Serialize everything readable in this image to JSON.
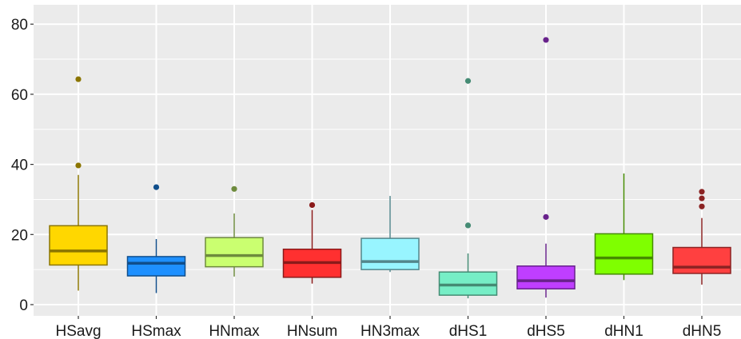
{
  "chart_data": {
    "type": "boxplot",
    "title": "",
    "xlabel": "",
    "ylabel": "",
    "ylim": [
      -4,
      84
    ],
    "y_ticks": [
      0,
      20,
      40,
      60,
      80
    ],
    "y_tick_labels": [
      "0",
      "20",
      "40",
      "60",
      "80"
    ],
    "grid": true,
    "legend": "none",
    "panel_background": "#EBEBEB",
    "grid_color": "#FFFFFF",
    "categories": [
      "HSavg",
      "HSmax",
      "HNmax",
      "HNsum",
      "HN3max",
      "dHS1",
      "dHS5",
      "dHN1",
      "dHN5"
    ],
    "boxes": [
      {
        "label": "HSavg",
        "whisker_low": 4.0,
        "q1": 11.3,
        "median": 15.3,
        "q3": 22.5,
        "whisker_high": 37.0,
        "outliers": [
          39.7,
          64.3
        ],
        "fill": "#FFD700",
        "line": "#8B7500"
      },
      {
        "label": "HSmax",
        "whisker_low": 3.3,
        "q1": 8.2,
        "median": 11.8,
        "q3": 13.7,
        "whisker_high": 18.7,
        "outliers": [
          33.5
        ],
        "fill": "#1E90FF",
        "line": "#104E8B"
      },
      {
        "label": "HNmax",
        "whisker_low": 8.0,
        "q1": 10.8,
        "median": 14.0,
        "q3": 19.1,
        "whisker_high": 26.0,
        "outliers": [
          33.0
        ],
        "fill": "#CAFF70",
        "line": "#6E8B3D"
      },
      {
        "label": "HNsum",
        "whisker_low": 6.0,
        "q1": 7.8,
        "median": 12.0,
        "q3": 15.8,
        "whisker_high": 27.0,
        "outliers": [
          28.4
        ],
        "fill": "#FF3030",
        "line": "#8B1A1A"
      },
      {
        "label": "HN3max",
        "whisker_low": 9.3,
        "q1": 10.0,
        "median": 12.3,
        "q3": 18.9,
        "whisker_high": 31.0,
        "outliers": [],
        "fill": "#98F5FF",
        "line": "#53868B"
      },
      {
        "label": "dHS1",
        "whisker_low": 1.8,
        "q1": 2.7,
        "median": 5.6,
        "q3": 9.3,
        "whisker_high": 14.6,
        "outliers": [
          22.6,
          63.8
        ],
        "fill": "#76EEC6",
        "line": "#458B74"
      },
      {
        "label": "dHS5",
        "whisker_low": 2.0,
        "q1": 4.5,
        "median": 6.8,
        "q3": 11.0,
        "whisker_high": 17.4,
        "outliers": [
          25.0,
          75.5
        ],
        "fill": "#BF3EFF",
        "line": "#68228B"
      },
      {
        "label": "dHN1",
        "whisker_low": 7.0,
        "q1": 8.7,
        "median": 13.3,
        "q3": 20.2,
        "whisker_high": 37.4,
        "outliers": [],
        "fill": "#7FFF00",
        "line": "#458B00"
      },
      {
        "label": "dHN5",
        "whisker_low": 5.7,
        "q1": 8.9,
        "median": 10.7,
        "q3": 16.3,
        "whisker_high": 24.7,
        "outliers": [
          28.0,
          30.3,
          32.2
        ],
        "fill": "#FF4040",
        "line": "#8B2323"
      }
    ]
  }
}
